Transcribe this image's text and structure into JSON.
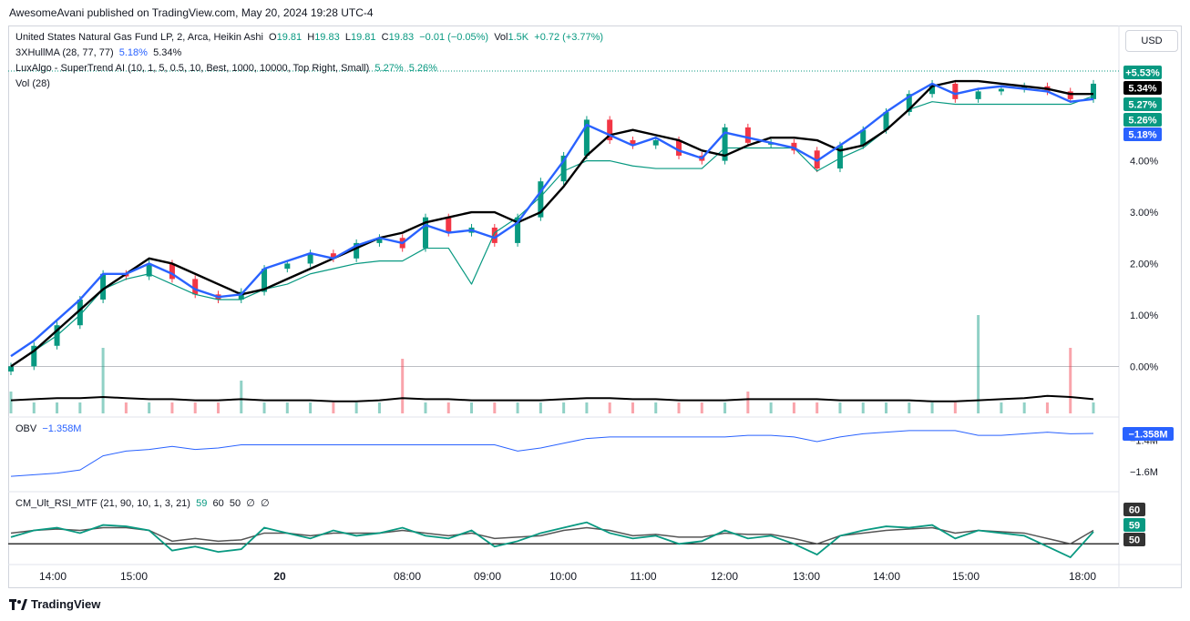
{
  "caption": "AwesomeAvani published on TradingView.com, May 20, 2024 19:28 UTC-4",
  "currency_button": "USD",
  "legend": {
    "main": {
      "title": "United States Natural Gas Fund LP, 2, Arca, Heikin Ashi",
      "o_label": "O",
      "o": "19.81",
      "h_label": "H",
      "h": "19.83",
      "l_label": "L",
      "l": "19.81",
      "c_label": "C",
      "c": "19.83",
      "change": "−0.01 (−0.05%)",
      "vol_label": "Vol",
      "vol": "1.5K",
      "vol_change": "+0.72 (+3.77%)"
    },
    "hull": {
      "name": "3XHullMA (28, 77, 77)",
      "v1": "5.18%",
      "v2": "5.34%"
    },
    "lux": {
      "name": "LuxAlgo - SuperTrend AI (10, 1, 5, 0.5, 10, Best, 1000, 10000, Top Right, Small)",
      "v1": "5.27%",
      "v2": "5.26%"
    },
    "vol": {
      "name": "Vol (28)"
    },
    "obv": {
      "name": "OBV",
      "v": "−1.358M"
    },
    "rsi": {
      "name": "CM_Ult_RSI_MTF (21, 90, 10, 1, 3, 21)",
      "v1": "59",
      "v2": "60",
      "v3": "50",
      "v4": "∅",
      "v5": "∅"
    }
  },
  "colors": {
    "up": "#089981",
    "down": "#f23645",
    "hull_blue": "#2962ff",
    "black_line": "#000000",
    "obv_line": "#2962ff",
    "rsi_green": "#089981",
    "rsi_gray": "#555555"
  },
  "badges": {
    "main": [
      "+5.53%",
      "5.34%",
      "5.27%",
      "5.26%",
      "5.18%"
    ],
    "obv": "−1.358M",
    "rsi": [
      "60",
      "59",
      "50"
    ]
  },
  "chart_data": [
    {
      "type": "line",
      "name": "price_percent",
      "xticks": [
        "14:00",
        "15:00",
        "20",
        "08:00",
        "09:00",
        "10:00",
        "11:00",
        "12:00",
        "13:00",
        "14:00",
        "15:00",
        "18:00"
      ],
      "yticks": [
        "4.00%",
        "3.00%",
        "2.00%",
        "1.00%",
        "0.00%"
      ],
      "ylim": [
        -0.1,
        5.8
      ],
      "series": [
        {
          "values": [
            0.0,
            0.4,
            0.8,
            1.3,
            1.8,
            1.75,
            2.0,
            1.7,
            1.4,
            1.3,
            1.45,
            1.9,
            2.0,
            2.2,
            2.1,
            2.4,
            2.5,
            2.3,
            2.9,
            2.6,
            2.7,
            2.4,
            2.9,
            3.6,
            4.1,
            4.8,
            4.4,
            4.3,
            4.4,
            4.1,
            4.0,
            4.65,
            4.35,
            4.35,
            4.2,
            3.85,
            4.3,
            4.6,
            4.95,
            5.3,
            5.5,
            5.2,
            5.35,
            5.4,
            5.45,
            5.35,
            5.2,
            5.5
          ]
        },
        {
          "name": "3XHullMA",
          "values": [
            0.2,
            0.5,
            0.9,
            1.3,
            1.8,
            1.8,
            2.0,
            1.8,
            1.5,
            1.35,
            1.4,
            1.9,
            2.05,
            2.2,
            2.1,
            2.35,
            2.5,
            2.4,
            2.75,
            2.6,
            2.65,
            2.5,
            2.8,
            3.4,
            4.0,
            4.7,
            4.5,
            4.3,
            4.45,
            4.2,
            4.05,
            4.55,
            4.45,
            4.35,
            4.25,
            4.0,
            4.3,
            4.6,
            4.95,
            5.25,
            5.5,
            5.3,
            5.4,
            5.45,
            5.4,
            5.35,
            5.15,
            5.2
          ]
        },
        {
          "values": [
            0.0,
            0.3,
            0.7,
            1.1,
            1.5,
            1.8,
            2.1,
            2.0,
            1.8,
            1.6,
            1.4,
            1.5,
            1.7,
            1.9,
            2.1,
            2.3,
            2.5,
            2.6,
            2.8,
            2.9,
            3.0,
            3.0,
            2.8,
            3.0,
            3.5,
            4.1,
            4.5,
            4.6,
            4.5,
            4.4,
            4.2,
            4.1,
            4.3,
            4.45,
            4.45,
            4.4,
            4.2,
            4.3,
            4.6,
            5.0,
            5.45,
            5.55,
            5.55,
            5.5,
            5.45,
            5.4,
            5.3,
            5.3
          ]
        },
        {
          "name": "SuperTrend AI",
          "values": [
            0.0,
            0.3,
            0.6,
            1.0,
            1.5,
            1.7,
            1.8,
            1.6,
            1.4,
            1.3,
            1.3,
            1.5,
            1.6,
            1.8,
            1.9,
            2.0,
            2.05,
            2.05,
            2.3,
            2.3,
            1.6,
            2.6,
            2.9,
            3.3,
            3.8,
            4.0,
            4.0,
            3.9,
            3.85,
            3.85,
            3.85,
            4.25,
            4.25,
            4.25,
            4.25,
            3.8,
            4.05,
            4.25,
            4.6,
            5.0,
            5.15,
            5.1,
            5.1,
            5.1,
            5.1,
            5.1,
            5.1,
            5.26
          ]
        }
      ]
    },
    {
      "type": "bar",
      "name": "Vol (28)",
      "values": [
        2,
        1,
        1,
        1,
        6,
        1,
        1,
        1,
        1,
        1,
        3,
        1,
        1,
        1,
        1,
        1,
        1,
        5,
        1,
        1,
        1,
        1,
        1,
        1,
        1,
        1,
        1,
        1,
        1,
        1,
        1,
        1,
        2,
        1,
        1,
        1,
        1,
        1,
        1,
        1,
        1,
        1,
        9,
        1,
        1,
        1,
        6,
        1
      ],
      "ma": [
        1.2,
        1.3,
        1.4,
        1.4,
        1.5,
        1.4,
        1.3,
        1.3,
        1.2,
        1.2,
        1.3,
        1.2,
        1.2,
        1.2,
        1.1,
        1.1,
        1.2,
        1.4,
        1.3,
        1.3,
        1.2,
        1.2,
        1.2,
        1.2,
        1.3,
        1.4,
        1.4,
        1.3,
        1.3,
        1.2,
        1.2,
        1.2,
        1.3,
        1.3,
        1.3,
        1.3,
        1.2,
        1.2,
        1.2,
        1.2,
        1.1,
        1.1,
        1.2,
        1.3,
        1.4,
        1.6,
        1.5,
        1.3
      ]
    },
    {
      "type": "line",
      "name": "OBV",
      "yticks": [
        "−1.4M",
        "−1.6M"
      ],
      "ylim": [
        -1.67,
        -1.3
      ],
      "values": [
        -1.63,
        -1.62,
        -1.61,
        -1.59,
        -1.5,
        -1.47,
        -1.46,
        -1.44,
        -1.46,
        -1.45,
        -1.43,
        -1.43,
        -1.43,
        -1.43,
        -1.43,
        -1.43,
        -1.43,
        -1.43,
        -1.43,
        -1.43,
        -1.43,
        -1.43,
        -1.47,
        -1.45,
        -1.42,
        -1.39,
        -1.38,
        -1.38,
        -1.38,
        -1.38,
        -1.38,
        -1.38,
        -1.37,
        -1.37,
        -1.38,
        -1.41,
        -1.38,
        -1.36,
        -1.35,
        -1.34,
        -1.34,
        -1.34,
        -1.37,
        -1.37,
        -1.36,
        -1.35,
        -1.36,
        -1.358
      ]
    },
    {
      "type": "line",
      "name": "CM_Ult_RSI_MTF",
      "ylim": [
        38,
        82
      ],
      "hline": 50,
      "series": [
        {
          "values": [
            55,
            60,
            62,
            58,
            64,
            63,
            60,
            45,
            48,
            44,
            46,
            62,
            58,
            54,
            60,
            56,
            58,
            62,
            56,
            54,
            60,
            48,
            52,
            58,
            62,
            66,
            58,
            54,
            56,
            50,
            52,
            60,
            54,
            56,
            50,
            42,
            56,
            60,
            63,
            62,
            64,
            54,
            60,
            58,
            56,
            48,
            40,
            59
          ]
        },
        {
          "values": [
            58,
            60,
            61,
            60,
            62,
            62,
            60,
            52,
            54,
            52,
            53,
            58,
            58,
            56,
            58,
            58,
            58,
            60,
            58,
            56,
            58,
            54,
            55,
            56,
            60,
            62,
            60,
            56,
            57,
            55,
            55,
            58,
            57,
            57,
            54,
            50,
            56,
            58,
            60,
            61,
            62,
            58,
            60,
            59,
            58,
            54,
            50,
            60
          ]
        }
      ]
    }
  ]
}
